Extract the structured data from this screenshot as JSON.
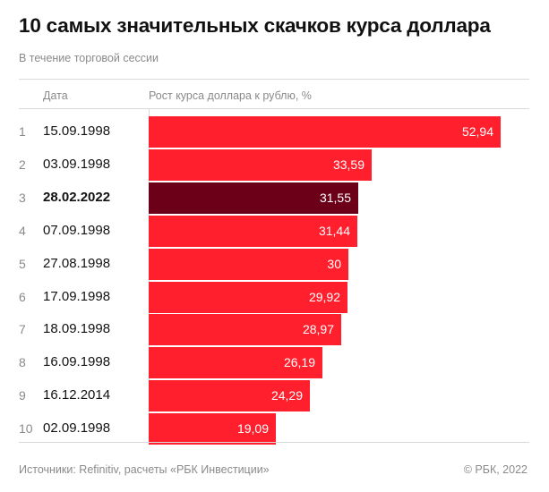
{
  "title": "10 самых значительных скачков курса доллара",
  "subtitle": "В течение торговой сессии",
  "columns": {
    "date": "Дата",
    "value": "Рост курса доллара к рублю, %"
  },
  "colors": {
    "bar": "#ff1f2d",
    "highlight": "#6b0018"
  },
  "chart_data": {
    "type": "bar",
    "orientation": "horizontal",
    "title": "10 самых значительных скачков курса доллара",
    "subtitle": "В течение торговой сессии",
    "xlabel": "Рост курса доллара к рублю, %",
    "ylabel": "Дата",
    "xlim": [
      0,
      52.94
    ],
    "grid": false,
    "legend": "none",
    "rows": [
      {
        "rank": "1",
        "date": "15.09.1998",
        "value": 52.94,
        "label": "52,94",
        "highlight": false
      },
      {
        "rank": "2",
        "date": "03.09.1998",
        "value": 33.59,
        "label": "33,59",
        "highlight": false
      },
      {
        "rank": "3",
        "date": "28.02.2022",
        "value": 31.55,
        "label": "31,55",
        "highlight": true
      },
      {
        "rank": "4",
        "date": "07.09.1998",
        "value": 31.44,
        "label": "31,44",
        "highlight": false
      },
      {
        "rank": "5",
        "date": "27.08.1998",
        "value": 30,
        "label": "30",
        "highlight": false
      },
      {
        "rank": "6",
        "date": "17.09.1998",
        "value": 29.92,
        "label": "29,92",
        "highlight": false
      },
      {
        "rank": "7",
        "date": "18.09.1998",
        "value": 28.97,
        "label": "28,97",
        "highlight": false
      },
      {
        "rank": "8",
        "date": "16.09.1998",
        "value": 26.19,
        "label": "26,19",
        "highlight": false
      },
      {
        "rank": "9",
        "date": "16.12.2014",
        "value": 24.29,
        "label": "24,29",
        "highlight": false
      },
      {
        "rank": "10",
        "date": "02.09.1998",
        "value": 19.09,
        "label": "19,09",
        "highlight": false
      }
    ]
  },
  "footer": {
    "source": "Источники: Refinitiv, расчеты «РБК Инвестиции»",
    "copyright": "©  РБК, 2022"
  }
}
